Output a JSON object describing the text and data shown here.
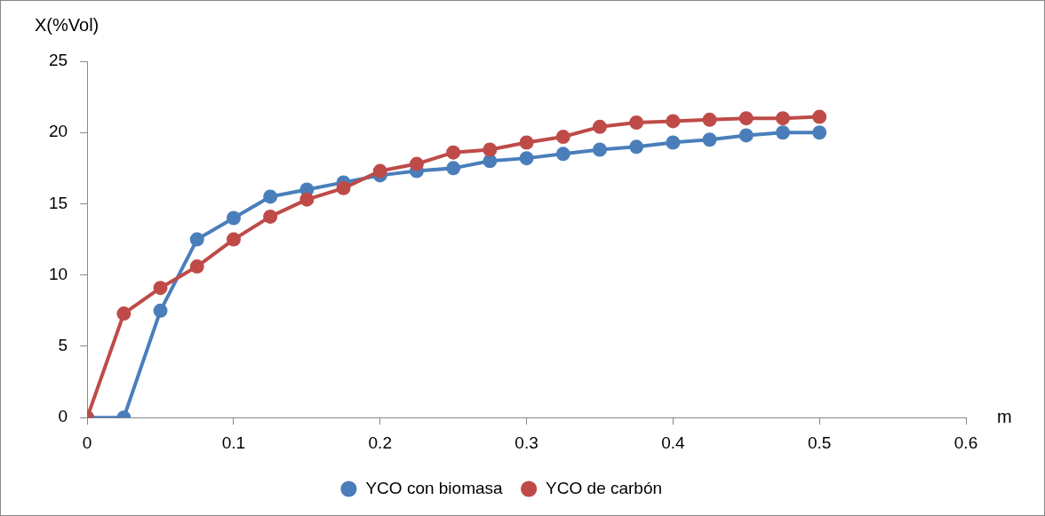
{
  "chart_data": {
    "type": "line",
    "xlabel": "m",
    "ylabel": "X(%Vol)",
    "x": [
      0,
      0.025,
      0.05,
      0.075,
      0.1,
      0.125,
      0.15,
      0.175,
      0.2,
      0.225,
      0.25,
      0.275,
      0.3,
      0.325,
      0.35,
      0.375,
      0.4,
      0.425,
      0.45,
      0.475,
      0.5
    ],
    "series": [
      {
        "name": "YCO con biomasa",
        "color": "#4a7ebb",
        "values": [
          0,
          0,
          7.5,
          12.5,
          14,
          15.5,
          16,
          16.5,
          17,
          17.3,
          17.5,
          18,
          18.2,
          18.5,
          18.8,
          19,
          19.3,
          19.5,
          19.8,
          20,
          20
        ]
      },
      {
        "name": "YCO de carbón",
        "color": "#be4b48",
        "values": [
          0,
          7.3,
          9.1,
          10.6,
          12.5,
          14.1,
          15.3,
          16.1,
          17.3,
          17.8,
          18.6,
          18.8,
          19.3,
          19.7,
          20.4,
          20.7,
          20.8,
          20.9,
          21,
          21,
          21.1
        ]
      }
    ],
    "xlim": [
      0,
      0.6
    ],
    "xticks": [
      0,
      0.1,
      0.2,
      0.3,
      0.4,
      0.5,
      0.6
    ],
    "ylim": [
      0,
      25
    ],
    "yticks": [
      0,
      5,
      10,
      15,
      20,
      25
    ],
    "grid": false,
    "legend": "bottom",
    "marker": "circle",
    "line_style": "solid"
  }
}
